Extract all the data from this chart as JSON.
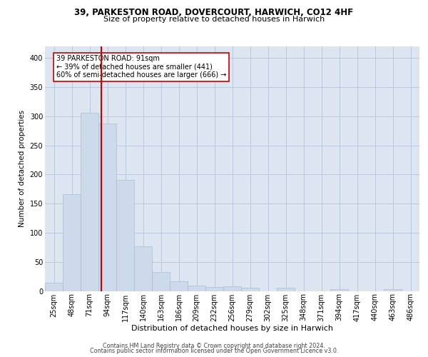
{
  "title1": "39, PARKESTON ROAD, DOVERCOURT, HARWICH, CO12 4HF",
  "title2": "Size of property relative to detached houses in Harwich",
  "xlabel": "Distribution of detached houses by size in Harwich",
  "ylabel": "Number of detached properties",
  "footnote1": "Contains HM Land Registry data © Crown copyright and database right 2024.",
  "footnote2": "Contains public sector information licensed under the Open Government Licence v3.0.",
  "bin_labels": [
    "25sqm",
    "48sqm",
    "71sqm",
    "94sqm",
    "117sqm",
    "140sqm",
    "163sqm",
    "186sqm",
    "209sqm",
    "232sqm",
    "256sqm",
    "279sqm",
    "302sqm",
    "325sqm",
    "348sqm",
    "371sqm",
    "394sqm",
    "417sqm",
    "440sqm",
    "463sqm",
    "486sqm"
  ],
  "bar_values": [
    14,
    166,
    306,
    288,
    191,
    77,
    32,
    17,
    9,
    7,
    8,
    5,
    0,
    5,
    0,
    0,
    3,
    0,
    0,
    3,
    0
  ],
  "bar_color": "#ccdaeb",
  "bar_edge_color": "#aabdd4",
  "grid_color": "#b8c8dc",
  "background_color": "#dde6f0",
  "vline_x": 2.66,
  "vline_color": "#cc0000",
  "annotation_text": "39 PARKESTON ROAD: 91sqm\n← 39% of detached houses are smaller (441)\n60% of semi-detached houses are larger (666) →",
  "annotation_box_color": "#ffffff",
  "annotation_box_edge": "#cc0000",
  "ylim": [
    0,
    420
  ],
  "yticks": [
    0,
    50,
    100,
    150,
    200,
    250,
    300,
    350,
    400
  ],
  "title1_fontsize": 8.5,
  "title2_fontsize": 8.0,
  "xlabel_fontsize": 8.0,
  "ylabel_fontsize": 7.5,
  "tick_fontsize": 7.0,
  "annot_fontsize": 7.0,
  "footnote_fontsize": 5.8
}
